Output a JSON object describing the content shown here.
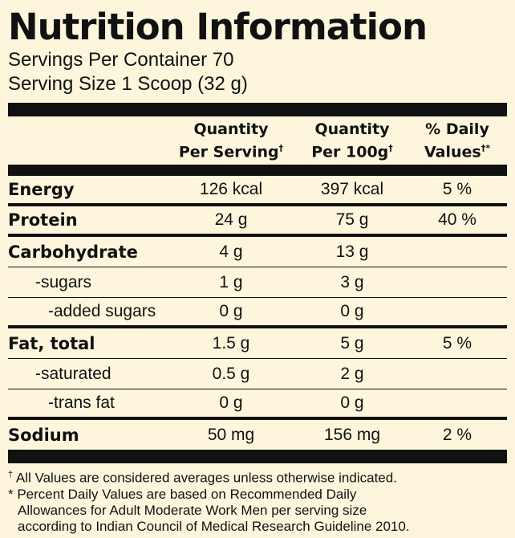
{
  "title": "Nutrition Information",
  "servings_per_container": "Servings Per Container 70",
  "serving_size": "Serving Size 1 Scoop (32 g)",
  "headers": {
    "col1_line1": "Quantity",
    "col1_line2": "Per Serving",
    "col2_line1": "Quantity",
    "col2_line2": "Per 100g",
    "col3_line1": "% Daily",
    "col3_line2": "Values",
    "dagger": "†",
    "dagger_star": "†*"
  },
  "rows": [
    {
      "name": "Energy",
      "per_serving": "126 kcal",
      "per_100g": "397 kcal",
      "dv": "5 %"
    },
    {
      "name": "Protein",
      "per_serving": "24 g",
      "per_100g": "75 g",
      "dv": "40 %"
    },
    {
      "name": "Carbohydrate",
      "per_serving": "4 g",
      "per_100g": "13 g",
      "dv": ""
    },
    {
      "name": "-sugars",
      "per_serving": "1 g",
      "per_100g": "3 g",
      "dv": ""
    },
    {
      "name": "-added sugars",
      "per_serving": "0 g",
      "per_100g": "0 g",
      "dv": ""
    },
    {
      "name": "Fat, total",
      "per_serving": "1.5 g",
      "per_100g": "5 g",
      "dv": "5 %"
    },
    {
      "name": "-saturated",
      "per_serving": "0.5 g",
      "per_100g": "2 g",
      "dv": ""
    },
    {
      "name": "-trans fat",
      "per_serving": "0 g",
      "per_100g": "0 g",
      "dv": ""
    },
    {
      "name": "Sodium",
      "per_serving": "50 mg",
      "per_100g": "156 mg",
      "dv": "2 %"
    }
  ],
  "footnotes": {
    "dagger_mark": "†",
    "dagger_text": " All Values are considered averages unless otherwise indicated.",
    "star_line1": "* Percent Daily Values are based on Recommended Daily",
    "star_line2": "Allowances for Adult Moderate Work Men per serving size",
    "star_line3": "according to Indian Council of Medical Research Guideline 2010."
  }
}
